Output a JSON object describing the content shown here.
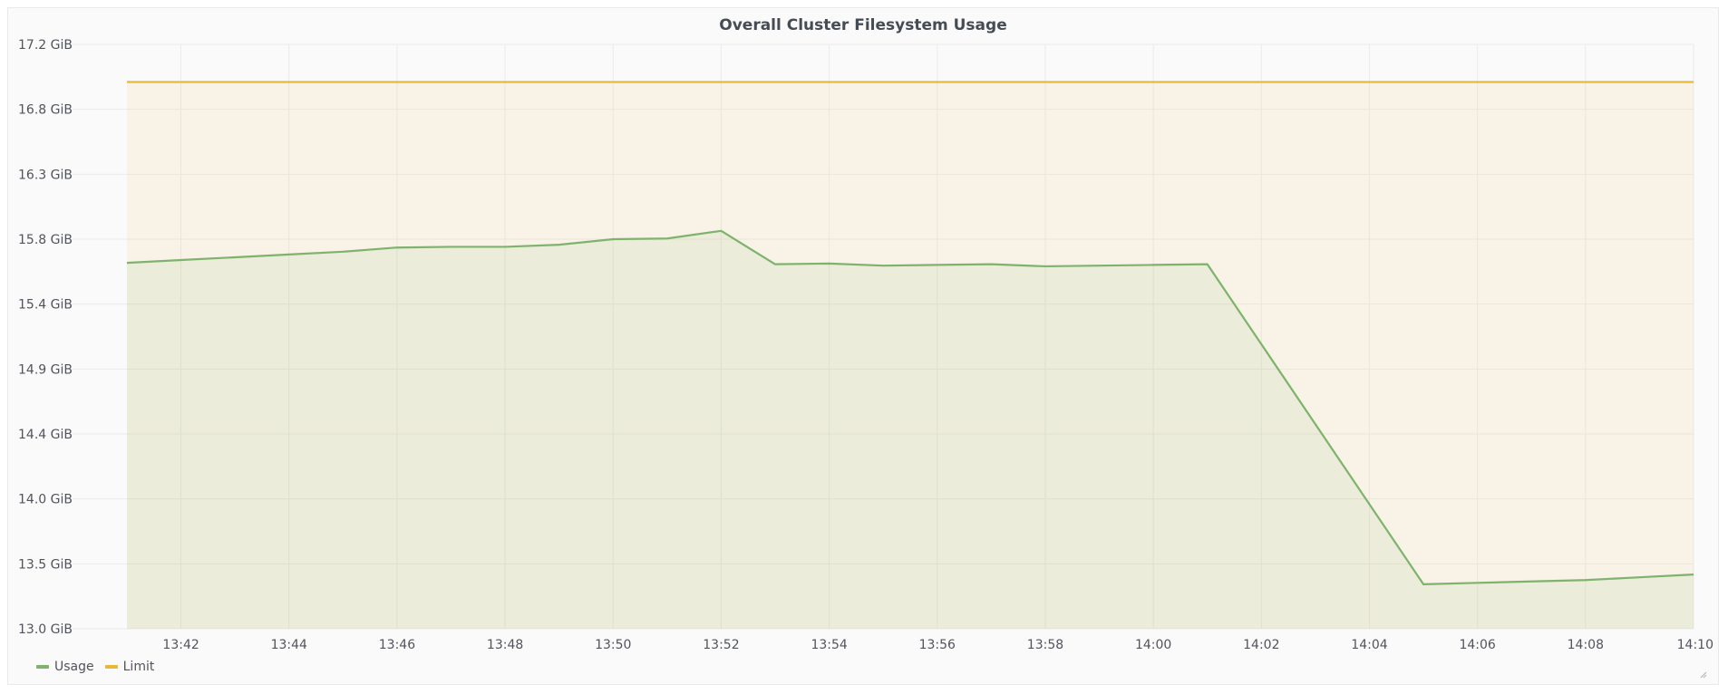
{
  "panel": {
    "title": "Overall Cluster Filesystem Usage"
  },
  "legend": {
    "items": [
      {
        "label": "Usage",
        "color": "#7eb26d"
      },
      {
        "label": "Limit",
        "color": "#eab839"
      }
    ]
  },
  "chart_data": {
    "type": "area",
    "title": "Overall Cluster Filesystem Usage",
    "xlabel": "",
    "ylabel": "",
    "x": [
      "13:41",
      "13:42",
      "13:43",
      "13:44",
      "13:45",
      "13:46",
      "13:47",
      "13:48",
      "13:49",
      "13:50",
      "13:51",
      "13:52",
      "13:53",
      "13:54",
      "13:55",
      "13:56",
      "13:57",
      "13:58",
      "13:59",
      "14:00",
      "14:01",
      "14:02",
      "14:03",
      "14:04",
      "14:05",
      "14:06",
      "14:07",
      "14:08",
      "14:09",
      "14:10"
    ],
    "x_ticks": [
      "13:42",
      "13:44",
      "13:46",
      "13:48",
      "13:50",
      "13:52",
      "13:54",
      "13:56",
      "13:58",
      "14:00",
      "14:02",
      "14:04",
      "14:06",
      "14:08",
      "14:10"
    ],
    "y_ticks": [
      "13.0 GiB",
      "13.5 GiB",
      "14.0 GiB",
      "14.4 GiB",
      "14.9 GiB",
      "15.4 GiB",
      "15.8 GiB",
      "16.3 GiB",
      "16.8 GiB",
      "17.2 GiB"
    ],
    "ylim": [
      13.0,
      17.2
    ],
    "xlim": [
      "13:41",
      "14:10"
    ],
    "grid": true,
    "legend_position": "bottom-left",
    "series": [
      {
        "name": "Usage",
        "color": "#7eb26d",
        "fill": true,
        "values": [
          15.63,
          15.65,
          15.67,
          15.69,
          15.71,
          15.74,
          15.745,
          15.745,
          15.76,
          15.8,
          15.805,
          15.86,
          15.62,
          15.625,
          15.61,
          15.615,
          15.62,
          15.605,
          15.61,
          15.615,
          15.62,
          null,
          null,
          null,
          13.32,
          13.33,
          13.34,
          13.35,
          13.37,
          13.39
        ]
      },
      {
        "name": "Limit",
        "color": "#eab839",
        "fill": true,
        "values": [
          16.93,
          16.93,
          16.93,
          16.93,
          16.93,
          16.93,
          16.93,
          16.93,
          16.93,
          16.93,
          16.93,
          16.93,
          16.93,
          16.93,
          16.93,
          16.93,
          16.93,
          16.93,
          16.93,
          16.93,
          16.93,
          16.93,
          16.93,
          16.93,
          16.93,
          16.93,
          16.93,
          16.93,
          16.93,
          16.93
        ]
      }
    ]
  }
}
